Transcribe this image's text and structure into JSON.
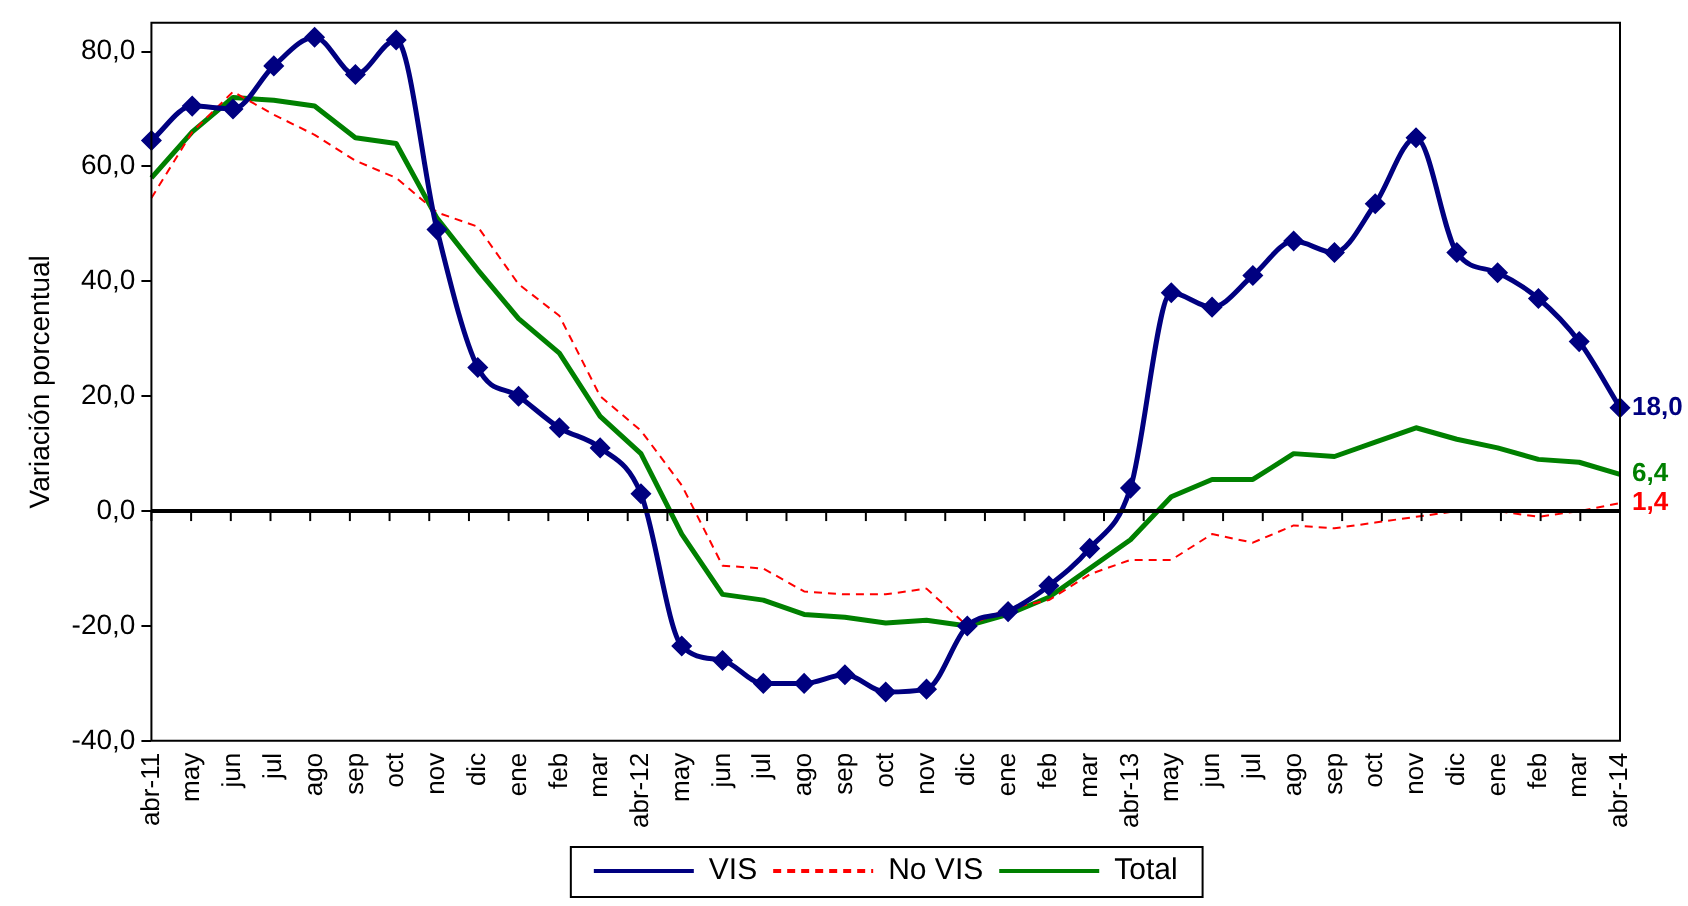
{
  "chart_data": {
    "type": "line",
    "ylabel": "Variación porcentual",
    "categories": [
      "abr-11",
      "may",
      "jun",
      "jul",
      "ago",
      "sep",
      "oct",
      "nov",
      "dic",
      "ene",
      "feb",
      "mar",
      "abr-12",
      "may",
      "jun",
      "jul",
      "ago",
      "sep",
      "oct",
      "nov",
      "dic",
      "ene",
      "feb",
      "mar",
      "abr-13",
      "may",
      "jun",
      "jul",
      "ago",
      "sep",
      "oct",
      "nov",
      "dic",
      "ene",
      "feb",
      "mar",
      "abr-14"
    ],
    "series": [
      {
        "name": "VIS",
        "color": "#000080",
        "marker": "diamond",
        "line_style": "solid",
        "values": [
          64.5,
          70.5,
          70,
          77.5,
          82.5,
          76,
          82,
          49,
          25,
          20,
          14.5,
          11,
          3,
          -23.5,
          -26,
          -30,
          -30,
          -28.5,
          -31.5,
          -31,
          -20,
          -17.5,
          -13,
          -6.5,
          4,
          38,
          35.5,
          41,
          47,
          45,
          53.5,
          65,
          45,
          41.5,
          37,
          29.5,
          18.0
        ],
        "value_labels": [
          null,
          null,
          null,
          null,
          null,
          null,
          null,
          null,
          null,
          null,
          null,
          null,
          null,
          null,
          null,
          null,
          null,
          null,
          null,
          null,
          null,
          null,
          null,
          null,
          null,
          null,
          null,
          null,
          null,
          null,
          null,
          null,
          null,
          null,
          null,
          null,
          "18,0"
        ]
      },
      {
        "name": "No VIS",
        "color": "#ff0000",
        "marker": "none",
        "line_style": "dashed",
        "values": [
          54.5,
          66,
          73,
          69,
          65.5,
          61,
          58,
          52,
          49.5,
          39.5,
          34,
          20,
          14,
          4.5,
          -9.5,
          -10,
          -14,
          -14.5,
          -14.5,
          -13.5,
          -20,
          -17,
          -15.5,
          -11,
          -8.5,
          -8.5,
          -4,
          -5.5,
          -2.5,
          -3,
          -2,
          -1,
          0,
          0,
          -1,
          0,
          1.4
        ],
        "value_labels": [
          null,
          null,
          null,
          null,
          null,
          null,
          null,
          null,
          null,
          null,
          null,
          null,
          null,
          null,
          null,
          null,
          null,
          null,
          null,
          null,
          null,
          null,
          null,
          null,
          null,
          null,
          null,
          null,
          null,
          null,
          null,
          null,
          null,
          null,
          null,
          null,
          "1,4"
        ]
      },
      {
        "name": "Total",
        "color": "#008000",
        "marker": "none",
        "line_style": "solid",
        "values": [
          58,
          66,
          72,
          71.5,
          70.5,
          65,
          64,
          51,
          42,
          33.5,
          27.5,
          16.5,
          10,
          -4,
          -14.5,
          -15.5,
          -18,
          -18.5,
          -19.5,
          -19,
          -20,
          -18,
          -15,
          -10,
          -5,
          2.5,
          5.5,
          5.5,
          10,
          9.5,
          12,
          14.5,
          12.5,
          11,
          9,
          8.5,
          6.4
        ],
        "value_labels": [
          null,
          null,
          null,
          null,
          null,
          null,
          null,
          null,
          null,
          null,
          null,
          null,
          null,
          null,
          null,
          null,
          null,
          null,
          null,
          null,
          null,
          null,
          null,
          null,
          null,
          null,
          null,
          null,
          null,
          null,
          null,
          null,
          null,
          null,
          null,
          null,
          "6,4"
        ]
      }
    ],
    "ylim": [
      -40,
      85
    ],
    "yticks": [
      {
        "value": -40,
        "label": "-40,0"
      },
      {
        "value": -20,
        "label": "-20,0"
      },
      {
        "value": 0,
        "label": "0,0"
      },
      {
        "value": 20,
        "label": "20,0"
      },
      {
        "value": 40,
        "label": "40,0"
      },
      {
        "value": 60,
        "label": "60,0"
      },
      {
        "value": 80,
        "label": "80,0"
      }
    ],
    "ref_lines": [
      {
        "axis": "y",
        "value": 0,
        "color": "#000000"
      }
    ],
    "grid": false,
    "legend": "bottom"
  }
}
